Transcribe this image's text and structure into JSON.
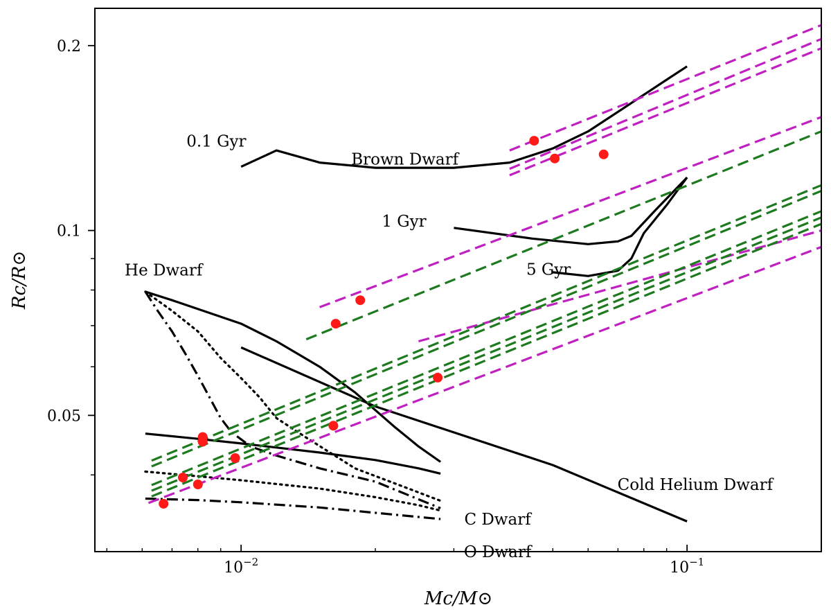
{
  "chart_data": {
    "type": "line",
    "xscale": "log",
    "yscale": "log",
    "xlim": [
      0.0047,
      0.2
    ],
    "ylim": [
      0.03,
      0.23
    ],
    "xlabel": "Mc/M⊙",
    "ylabel": "Rc/R⊙",
    "grid": false,
    "x_ticks": [
      {
        "label": "10",
        "exp": "−2",
        "value": 0.01
      },
      {
        "label": "10",
        "exp": "−1",
        "value": 0.1
      }
    ],
    "y_ticks": [
      {
        "label": "0.2",
        "value": 0.2
      },
      {
        "label": "0.1",
        "value": 0.1
      },
      {
        "label": "0.05",
        "value": 0.05
      }
    ],
    "x_minor_ticks": [
      0.005,
      0.006,
      0.007,
      0.008,
      0.009,
      0.02,
      0.03,
      0.04,
      0.05,
      0.06,
      0.07,
      0.08,
      0.09,
      0.2
    ],
    "y_minor_ticks": [
      0.04,
      0.06,
      0.07,
      0.08,
      0.09
    ],
    "annotations": [
      {
        "text": "0.1 Gyr",
        "x": 0.0088,
        "y": 0.137
      },
      {
        "text": "Brown Dwarf",
        "x": 0.0233,
        "y": 0.128
      },
      {
        "text": "1 Gyr",
        "x": 0.0232,
        "y": 0.1015
      },
      {
        "text": "5 Gyr",
        "x": 0.0489,
        "y": 0.0847
      },
      {
        "text": "He Dwarf",
        "x": 0.0067,
        "y": 0.0845
      },
      {
        "text": "Cold Helium Dwarf",
        "x": 0.1043,
        "y": 0.0378
      },
      {
        "text": "C Dwarf",
        "x": 0.0376,
        "y": 0.0332
      },
      {
        "text": "O Dwarf",
        "x": 0.0376,
        "y": 0.0294
      }
    ],
    "series": [
      {
        "name": "Brown Dwarf 0.1 Gyr",
        "style": "solid",
        "color": "#000000",
        "points": [
          [
            0.01,
            0.127
          ],
          [
            0.012,
            0.135
          ],
          [
            0.015,
            0.129
          ],
          [
            0.02,
            0.1265
          ],
          [
            0.03,
            0.1265
          ],
          [
            0.04,
            0.129
          ],
          [
            0.05,
            0.136
          ],
          [
            0.06,
            0.145
          ],
          [
            0.07,
            0.156
          ],
          [
            0.09,
            0.176
          ],
          [
            0.1,
            0.185
          ]
        ]
      },
      {
        "name": "Brown Dwarf 1 Gyr",
        "style": "solid",
        "color": "#000000",
        "points": [
          [
            0.03,
            0.101
          ],
          [
            0.045,
            0.097
          ],
          [
            0.06,
            0.095
          ],
          [
            0.07,
            0.096
          ],
          [
            0.075,
            0.098
          ],
          [
            0.085,
            0.108
          ],
          [
            0.1,
            0.122
          ]
        ]
      },
      {
        "name": "Brown Dwarf 5 Gyr",
        "style": "solid",
        "color": "#000000",
        "points": [
          [
            0.05,
            0.0855
          ],
          [
            0.06,
            0.0843
          ],
          [
            0.07,
            0.086
          ],
          [
            0.075,
            0.09
          ],
          [
            0.08,
            0.099
          ],
          [
            0.09,
            0.11
          ],
          [
            0.1,
            0.122
          ]
        ]
      },
      {
        "name": "He Dwarf",
        "style": "solid",
        "color": "#000000",
        "points": [
          [
            0.0061,
            0.0795
          ],
          [
            0.007,
            0.077
          ],
          [
            0.008,
            0.0745
          ],
          [
            0.01,
            0.0705
          ],
          [
            0.012,
            0.066
          ],
          [
            0.015,
            0.06
          ],
          [
            0.018,
            0.0545
          ],
          [
            0.02,
            0.051
          ],
          [
            0.022,
            0.048
          ],
          [
            0.025,
            0.0445
          ],
          [
            0.028,
            0.042
          ]
        ]
      },
      {
        "name": "Cold Helium Dwarf",
        "style": "solid",
        "color": "#000000",
        "points": [
          [
            0.01,
            0.0645
          ],
          [
            0.02,
            0.0517
          ],
          [
            0.05,
            0.0415
          ],
          [
            0.1,
            0.0336
          ]
        ]
      },
      {
        "name": "He Dwarf lower track",
        "style": "solid",
        "color": "#000000",
        "points": [
          [
            0.0061,
            0.0467
          ],
          [
            0.008,
            0.0458
          ],
          [
            0.01,
            0.045
          ],
          [
            0.015,
            0.0435
          ],
          [
            0.02,
            0.0423
          ],
          [
            0.025,
            0.041
          ],
          [
            0.028,
            0.0402
          ]
        ]
      },
      {
        "name": "C Dwarf",
        "style": "dotted",
        "color": "#000000",
        "points": [
          [
            0.0061,
            0.0795
          ],
          [
            0.007,
            0.074
          ],
          [
            0.008,
            0.0685
          ],
          [
            0.009,
            0.062
          ],
          [
            0.01,
            0.0575
          ],
          [
            0.011,
            0.0535
          ],
          [
            0.012,
            0.0495
          ],
          [
            0.014,
            0.046
          ],
          [
            0.018,
            0.041
          ],
          [
            0.022,
            0.0388
          ],
          [
            0.028,
            0.0363
          ]
        ]
      },
      {
        "name": "C Dwarf lower track",
        "style": "dotted",
        "color": "#000000",
        "points": [
          [
            0.0061,
            0.0405
          ],
          [
            0.008,
            0.0398
          ],
          [
            0.01,
            0.0392
          ],
          [
            0.015,
            0.038
          ],
          [
            0.02,
            0.0368
          ],
          [
            0.025,
            0.0357
          ],
          [
            0.028,
            0.035
          ]
        ]
      },
      {
        "name": "O Dwarf",
        "style": "dashdot",
        "color": "#000000",
        "points": [
          [
            0.0061,
            0.0795
          ],
          [
            0.0065,
            0.074
          ],
          [
            0.007,
            0.0685
          ],
          [
            0.0075,
            0.063
          ],
          [
            0.008,
            0.058
          ],
          [
            0.009,
            0.0495
          ],
          [
            0.0095,
            0.047
          ],
          [
            0.0105,
            0.0445
          ],
          [
            0.012,
            0.043
          ],
          [
            0.015,
            0.041
          ],
          [
            0.02,
            0.039
          ],
          [
            0.028,
            0.0353
          ]
        ]
      },
      {
        "name": "O Dwarf lower track",
        "style": "dashdot",
        "color": "#000000",
        "points": [
          [
            0.0061,
            0.0366
          ],
          [
            0.008,
            0.0364
          ],
          [
            0.01,
            0.0361
          ],
          [
            0.015,
            0.0354
          ],
          [
            0.02,
            0.0347
          ],
          [
            0.028,
            0.0339
          ]
        ]
      },
      {
        "name": "magenta 1",
        "style": "dashed",
        "color": "#c020c0",
        "points": [
          [
            0.04,
            0.135
          ],
          [
            0.2,
            0.216
          ]
        ]
      },
      {
        "name": "magenta 2",
        "style": "dashed",
        "color": "#c020c0",
        "points": [
          [
            0.04,
            0.126
          ],
          [
            0.2,
            0.205
          ]
        ]
      },
      {
        "name": "magenta 3",
        "style": "dashed",
        "color": "#c020c0",
        "points": [
          [
            0.04,
            0.123
          ],
          [
            0.2,
            0.198
          ]
        ]
      },
      {
        "name": "magenta 4",
        "style": "dashed",
        "color": "#c020c0",
        "points": [
          [
            0.015,
            0.075
          ],
          [
            0.2,
            0.153
          ]
        ]
      },
      {
        "name": "magenta 5",
        "style": "dashed",
        "color": "#c020c0",
        "points": [
          [
            0.0062,
            0.036
          ],
          [
            0.2,
            0.094
          ]
        ]
      },
      {
        "name": "magenta 6",
        "style": "dashed",
        "color": "#c020c0",
        "points": [
          [
            0.025,
            0.066
          ],
          [
            0.2,
            0.1
          ]
        ]
      },
      {
        "name": "green 1",
        "style": "dashed",
        "color": "#1e7a1e",
        "points": [
          [
            0.014,
            0.0665
          ],
          [
            0.2,
            0.145
          ]
        ]
      },
      {
        "name": "green 2",
        "style": "dashed",
        "color": "#1e7a1e",
        "points": [
          [
            0.0063,
            0.0422
          ],
          [
            0.2,
            0.1185
          ]
        ]
      },
      {
        "name": "green 3",
        "style": "dashed",
        "color": "#1e7a1e",
        "points": [
          [
            0.0063,
            0.0413
          ],
          [
            0.2,
            0.116
          ]
        ]
      },
      {
        "name": "green 4",
        "style": "dashed",
        "color": "#1e7a1e",
        "points": [
          [
            0.0063,
            0.0385
          ],
          [
            0.2,
            0.1075
          ]
        ]
      },
      {
        "name": "green 5",
        "style": "dashed",
        "color": "#1e7a1e",
        "points": [
          [
            0.0063,
            0.0377
          ],
          [
            0.2,
            0.105
          ]
        ]
      },
      {
        "name": "green 6",
        "style": "dashed",
        "color": "#1e7a1e",
        "points": [
          [
            0.0063,
            0.0369
          ],
          [
            0.2,
            0.1025
          ]
        ]
      }
    ],
    "markers": [
      {
        "x": 0.0454,
        "y": 0.14
      },
      {
        "x": 0.0505,
        "y": 0.131
      },
      {
        "x": 0.065,
        "y": 0.133
      },
      {
        "x": 0.0185,
        "y": 0.077
      },
      {
        "x": 0.0163,
        "y": 0.0705
      },
      {
        "x": 0.0276,
        "y": 0.0576
      },
      {
        "x": 0.0161,
        "y": 0.0481
      },
      {
        "x": 0.0082,
        "y": 0.0461
      },
      {
        "x": 0.0082,
        "y": 0.0453
      },
      {
        "x": 0.0097,
        "y": 0.0426
      },
      {
        "x": 0.0074,
        "y": 0.0396
      },
      {
        "x": 0.008,
        "y": 0.0386
      },
      {
        "x": 0.0067,
        "y": 0.0359
      }
    ],
    "marker_color": "#ff1a1a"
  }
}
